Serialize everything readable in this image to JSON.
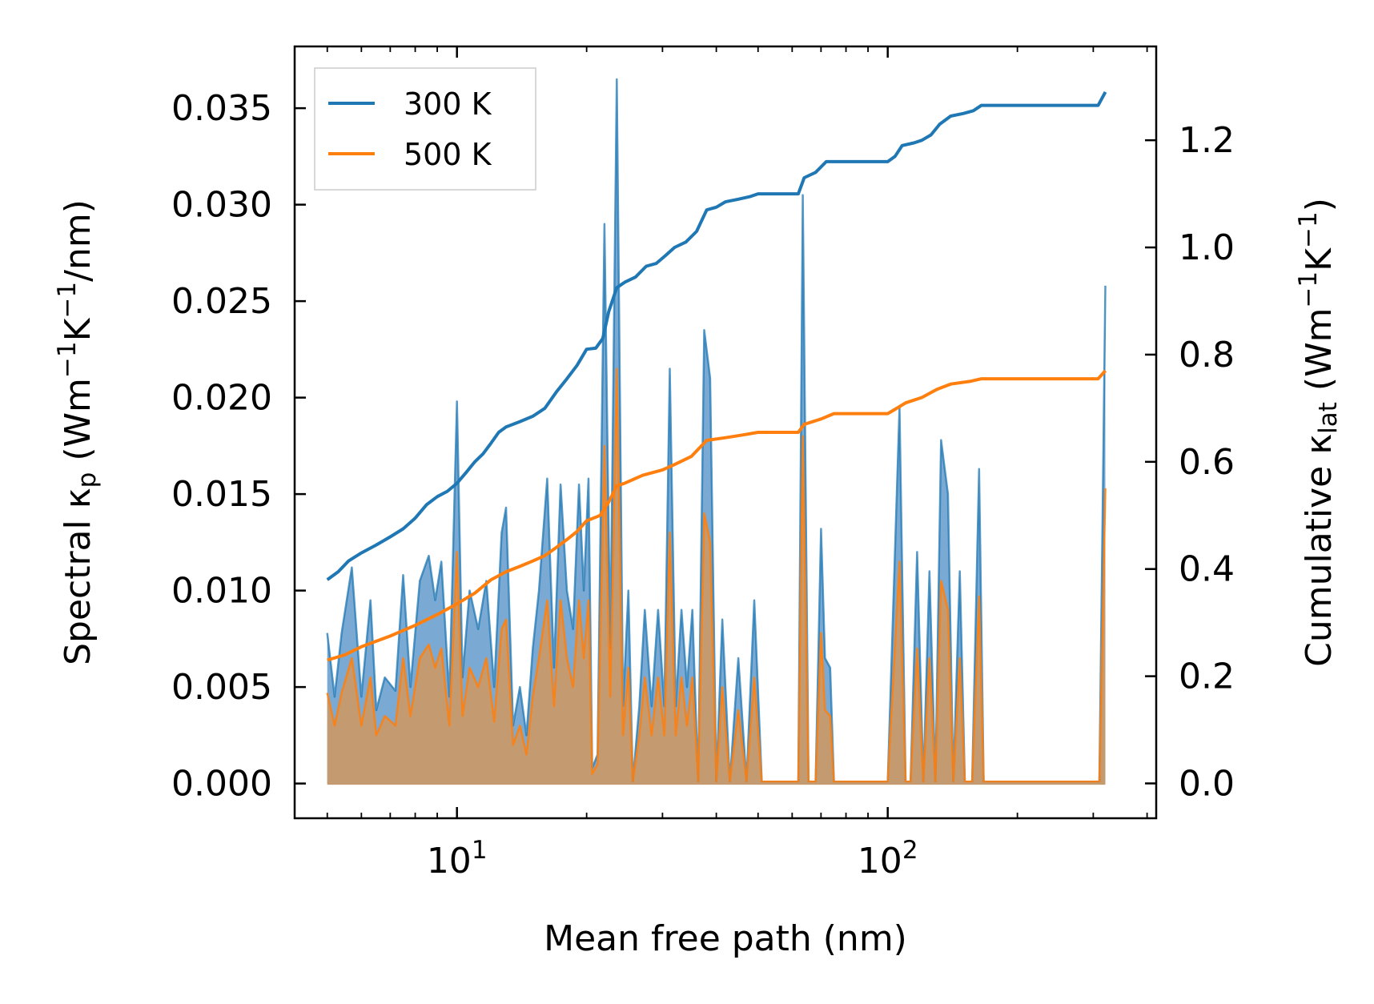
{
  "chart_data": {
    "type": "line",
    "x_scale": "log",
    "xlabel": "Mean free path (nm)",
    "ylabel_left": "Spectral κ",
    "ylabel_left_sub": "p",
    "ylabel_left_units": " (Wm",
    "ylabel_left_units2": "K",
    "ylabel_left_units3": "/nm)",
    "ylabel_right": "Cumulative κ",
    "ylabel_right_sub": "lat",
    "ylabel_right_units": " (Wm",
    "ylabel_right_units2": "K",
    "ylabel_right_units3": ")",
    "superscript": "−1",
    "xlim": [
      4.2,
      420
    ],
    "ylim_left": [
      -0.0018,
      0.0382
    ],
    "ylim_right": [
      -0.065,
      1.375
    ],
    "x_ticks_major": [
      10,
      100
    ],
    "x_tick_labels": [
      {
        "base": "10",
        "exp": "1"
      },
      {
        "base": "10",
        "exp": "2"
      }
    ],
    "y_ticks_left": [
      0.0,
      0.005,
      0.01,
      0.015,
      0.02,
      0.025,
      0.03,
      0.035
    ],
    "y_tick_labels_left": [
      "0.000",
      "0.005",
      "0.010",
      "0.015",
      "0.020",
      "0.025",
      "0.030",
      "0.035"
    ],
    "y_ticks_right": [
      0.0,
      0.2,
      0.4,
      0.6,
      0.8,
      1.0,
      1.2
    ],
    "y_tick_labels_right": [
      "0.0",
      "0.2",
      "0.4",
      "0.6",
      "0.8",
      "1.0",
      "1.2"
    ],
    "legend": [
      {
        "name": "300 K",
        "color": "#1f77b4"
      },
      {
        "name": "500 K",
        "color": "#ff7f0e"
      }
    ],
    "legend_position": "top-left",
    "colors": {
      "blue": "#1f77b4",
      "orange": "#ff7f0e",
      "blue_fill": "#7aaad3",
      "overlap_fill": "#c49a70"
    },
    "spectral_300K": [
      [
        5.0,
        0
      ],
      [
        5.0,
        0.0078
      ],
      [
        5.2,
        0.0045
      ],
      [
        5.4,
        0.0078
      ],
      [
        5.7,
        0.0112
      ],
      [
        6.0,
        0.0045
      ],
      [
        6.3,
        0.0095
      ],
      [
        6.5,
        0.0038
      ],
      [
        6.8,
        0.0055
      ],
      [
        7.2,
        0.0048
      ],
      [
        7.5,
        0.0108
      ],
      [
        7.8,
        0.005
      ],
      [
        8.2,
        0.0105
      ],
      [
        8.6,
        0.0118
      ],
      [
        8.9,
        0.0095
      ],
      [
        9.2,
        0.0115
      ],
      [
        9.6,
        0.0045
      ],
      [
        10.0,
        0.0198
      ],
      [
        10.3,
        0.0055
      ],
      [
        10.7,
        0.01
      ],
      [
        11.2,
        0.008
      ],
      [
        11.7,
        0.0105
      ],
      [
        12.2,
        0.005
      ],
      [
        12.7,
        0.013
      ],
      [
        13.0,
        0.0143
      ],
      [
        13.5,
        0.003
      ],
      [
        14.0,
        0.005
      ],
      [
        14.5,
        0.0025
      ],
      [
        15.0,
        0.007
      ],
      [
        15.5,
        0.01
      ],
      [
        16.2,
        0.0158
      ],
      [
        16.8,
        0.006
      ],
      [
        17.4,
        0.0155
      ],
      [
        18.0,
        0.01
      ],
      [
        18.6,
        0.008
      ],
      [
        19.2,
        0.0155
      ],
      [
        19.7,
        0.01
      ],
      [
        20.2,
        0.0158
      ],
      [
        20.6,
        0.0008
      ],
      [
        21.2,
        0.0015
      ],
      [
        22.0,
        0.029
      ],
      [
        22.7,
        0.007
      ],
      [
        23.5,
        0.0365
      ],
      [
        24.3,
        0.004
      ],
      [
        25.0,
        0.01
      ],
      [
        25.6,
        0.0001
      ],
      [
        26.5,
        0.004
      ],
      [
        27.3,
        0.009
      ],
      [
        28.3,
        0.004
      ],
      [
        29.3,
        0.009
      ],
      [
        30.3,
        0.004
      ],
      [
        31.2,
        0.0215
      ],
      [
        32.2,
        0.004
      ],
      [
        33.2,
        0.009
      ],
      [
        34.2,
        0.005
      ],
      [
        35.2,
        0.009
      ],
      [
        36.3,
        0.0001
      ],
      [
        37.5,
        0.0235
      ],
      [
        38.7,
        0.021
      ],
      [
        40.0,
        0.0001
      ],
      [
        41.3,
        0.0085
      ],
      [
        43.0,
        0.0001
      ],
      [
        45.0,
        0.0065
      ],
      [
        47.0,
        0.0001
      ],
      [
        49.0,
        0.0095
      ],
      [
        51.0,
        0.0001
      ],
      [
        60.0,
        0.0001
      ],
      [
        62.0,
        0.0001
      ],
      [
        63.5,
        0.0305
      ],
      [
        65.5,
        0.0001
      ],
      [
        68.0,
        0.0001
      ],
      [
        70.0,
        0.0132
      ],
      [
        71.5,
        0.0065
      ],
      [
        73.5,
        0.006
      ],
      [
        75.0,
        0.0001
      ],
      [
        100.0,
        0.0001
      ],
      [
        106.5,
        0.0195
      ],
      [
        110.0,
        0.0001
      ],
      [
        113.0,
        0.0001
      ],
      [
        117.0,
        0.012
      ],
      [
        121.0,
        0.0001
      ],
      [
        125.0,
        0.011
      ],
      [
        129.0,
        0.0001
      ],
      [
        133.0,
        0.0178
      ],
      [
        138.0,
        0.015
      ],
      [
        142.0,
        0.0001
      ],
      [
        147.0,
        0.011
      ],
      [
        151.0,
        0.0001
      ],
      [
        157.0,
        0.0001
      ],
      [
        163.0,
        0.0163
      ],
      [
        167.0,
        0.0001
      ],
      [
        310.0,
        0.0001
      ],
      [
        320.0,
        0.0258
      ],
      [
        320.0,
        0
      ]
    ],
    "spectral_500K": [
      [
        5.0,
        0
      ],
      [
        5.0,
        0.0047
      ],
      [
        5.2,
        0.003
      ],
      [
        5.4,
        0.0047
      ],
      [
        5.7,
        0.0065
      ],
      [
        6.0,
        0.003
      ],
      [
        6.3,
        0.0055
      ],
      [
        6.5,
        0.0025
      ],
      [
        6.8,
        0.0035
      ],
      [
        7.2,
        0.003
      ],
      [
        7.5,
        0.0065
      ],
      [
        7.8,
        0.0035
      ],
      [
        8.2,
        0.0065
      ],
      [
        8.6,
        0.0072
      ],
      [
        8.9,
        0.006
      ],
      [
        9.2,
        0.007
      ],
      [
        9.6,
        0.003
      ],
      [
        10.0,
        0.012
      ],
      [
        10.3,
        0.0035
      ],
      [
        10.7,
        0.006
      ],
      [
        11.2,
        0.005
      ],
      [
        11.7,
        0.0065
      ],
      [
        12.2,
        0.0032
      ],
      [
        12.7,
        0.008
      ],
      [
        13.0,
        0.0085
      ],
      [
        13.5,
        0.002
      ],
      [
        14.0,
        0.003
      ],
      [
        14.5,
        0.0015
      ],
      [
        15.0,
        0.0045
      ],
      [
        15.5,
        0.0065
      ],
      [
        16.2,
        0.0095
      ],
      [
        16.8,
        0.004
      ],
      [
        17.4,
        0.0095
      ],
      [
        18.0,
        0.0065
      ],
      [
        18.6,
        0.005
      ],
      [
        19.2,
        0.0095
      ],
      [
        19.7,
        0.0065
      ],
      [
        20.2,
        0.0095
      ],
      [
        20.6,
        0.0005
      ],
      [
        21.2,
        0.001
      ],
      [
        22.0,
        0.0175
      ],
      [
        22.7,
        0.0045
      ],
      [
        23.5,
        0.0215
      ],
      [
        24.3,
        0.0025
      ],
      [
        25.0,
        0.006
      ],
      [
        25.6,
        0.0001
      ],
      [
        26.5,
        0.0025
      ],
      [
        27.3,
        0.0055
      ],
      [
        28.3,
        0.0025
      ],
      [
        29.3,
        0.0055
      ],
      [
        30.3,
        0.0025
      ],
      [
        31.2,
        0.013
      ],
      [
        32.2,
        0.0025
      ],
      [
        33.2,
        0.0055
      ],
      [
        34.2,
        0.003
      ],
      [
        35.2,
        0.0055
      ],
      [
        36.3,
        0.0001
      ],
      [
        37.5,
        0.014
      ],
      [
        38.7,
        0.0125
      ],
      [
        40.0,
        0.0001
      ],
      [
        41.3,
        0.005
      ],
      [
        43.0,
        0.0001
      ],
      [
        45.0,
        0.0038
      ],
      [
        47.0,
        0.0001
      ],
      [
        49.0,
        0.0055
      ],
      [
        51.0,
        0.0001
      ],
      [
        60.0,
        0.0001
      ],
      [
        62.0,
        0.0001
      ],
      [
        63.5,
        0.018
      ],
      [
        65.5,
        0.0001
      ],
      [
        68.0,
        0.0001
      ],
      [
        70.0,
        0.0078
      ],
      [
        71.5,
        0.0038
      ],
      [
        73.5,
        0.0035
      ],
      [
        75.0,
        0.0001
      ],
      [
        100.0,
        0.0001
      ],
      [
        106.5,
        0.0115
      ],
      [
        110.0,
        0.0001
      ],
      [
        113.0,
        0.0001
      ],
      [
        117.0,
        0.007
      ],
      [
        121.0,
        0.0001
      ],
      [
        125.0,
        0.0065
      ],
      [
        129.0,
        0.0001
      ],
      [
        133.0,
        0.0105
      ],
      [
        138.0,
        0.009
      ],
      [
        142.0,
        0.0001
      ],
      [
        147.0,
        0.0065
      ],
      [
        151.0,
        0.0001
      ],
      [
        157.0,
        0.0001
      ],
      [
        163.0,
        0.0097
      ],
      [
        167.0,
        0.0001
      ],
      [
        310.0,
        0.0001
      ],
      [
        320.0,
        0.0153
      ],
      [
        320.0,
        0
      ]
    ],
    "cumulative_300K": [
      [
        5.0,
        0.38
      ],
      [
        5.3,
        0.395
      ],
      [
        5.6,
        0.415
      ],
      [
        6.0,
        0.43
      ],
      [
        6.5,
        0.445
      ],
      [
        7.0,
        0.46
      ],
      [
        7.5,
        0.475
      ],
      [
        8.0,
        0.495
      ],
      [
        8.5,
        0.52
      ],
      [
        9.0,
        0.535
      ],
      [
        9.5,
        0.545
      ],
      [
        10.0,
        0.56
      ],
      [
        10.5,
        0.58
      ],
      [
        11.0,
        0.6
      ],
      [
        11.5,
        0.615
      ],
      [
        12.0,
        0.635
      ],
      [
        12.5,
        0.655
      ],
      [
        13.0,
        0.665
      ],
      [
        14.0,
        0.675
      ],
      [
        15.0,
        0.685
      ],
      [
        16.0,
        0.7
      ],
      [
        17.0,
        0.73
      ],
      [
        18.0,
        0.755
      ],
      [
        19.0,
        0.78
      ],
      [
        20.0,
        0.81
      ],
      [
        21.0,
        0.812
      ],
      [
        21.8,
        0.83
      ],
      [
        22.5,
        0.88
      ],
      [
        23.5,
        0.925
      ],
      [
        24.5,
        0.935
      ],
      [
        26.0,
        0.945
      ],
      [
        27.5,
        0.965
      ],
      [
        29.0,
        0.97
      ],
      [
        30.5,
        0.985
      ],
      [
        32.0,
        1.0
      ],
      [
        34.0,
        1.01
      ],
      [
        36.0,
        1.03
      ],
      [
        38.0,
        1.07
      ],
      [
        40.0,
        1.075
      ],
      [
        42.0,
        1.085
      ],
      [
        45.0,
        1.09
      ],
      [
        48.0,
        1.095
      ],
      [
        50.0,
        1.1
      ],
      [
        55.0,
        1.1
      ],
      [
        62.0,
        1.1
      ],
      [
        64.0,
        1.13
      ],
      [
        68.0,
        1.14
      ],
      [
        72.0,
        1.16
      ],
      [
        80.0,
        1.16
      ],
      [
        95.0,
        1.16
      ],
      [
        100.0,
        1.16
      ],
      [
        104.0,
        1.17
      ],
      [
        108.0,
        1.19
      ],
      [
        115.0,
        1.195
      ],
      [
        120.0,
        1.2
      ],
      [
        126.0,
        1.21
      ],
      [
        132.0,
        1.23
      ],
      [
        140.0,
        1.245
      ],
      [
        150.0,
        1.25
      ],
      [
        158.0,
        1.255
      ],
      [
        165.0,
        1.265
      ],
      [
        200.0,
        1.265
      ],
      [
        250.0,
        1.265
      ],
      [
        308.0,
        1.265
      ],
      [
        320.0,
        1.29
      ]
    ],
    "cumulative_500K": [
      [
        5.0,
        0.23
      ],
      [
        5.5,
        0.24
      ],
      [
        6.0,
        0.255
      ],
      [
        7.0,
        0.275
      ],
      [
        8.0,
        0.295
      ],
      [
        9.0,
        0.315
      ],
      [
        10.0,
        0.335
      ],
      [
        11.0,
        0.355
      ],
      [
        12.0,
        0.38
      ],
      [
        13.0,
        0.395
      ],
      [
        14.0,
        0.405
      ],
      [
        15.0,
        0.415
      ],
      [
        16.0,
        0.425
      ],
      [
        17.0,
        0.44
      ],
      [
        18.0,
        0.455
      ],
      [
        19.0,
        0.47
      ],
      [
        20.0,
        0.49
      ],
      [
        21.5,
        0.5
      ],
      [
        22.5,
        0.525
      ],
      [
        23.5,
        0.555
      ],
      [
        24.5,
        0.56
      ],
      [
        27.0,
        0.575
      ],
      [
        30.0,
        0.585
      ],
      [
        32.0,
        0.595
      ],
      [
        35.0,
        0.61
      ],
      [
        38.0,
        0.64
      ],
      [
        42.0,
        0.645
      ],
      [
        46.0,
        0.65
      ],
      [
        50.0,
        0.655
      ],
      [
        55.0,
        0.655
      ],
      [
        62.0,
        0.655
      ],
      [
        64.0,
        0.67
      ],
      [
        70.0,
        0.68
      ],
      [
        75.0,
        0.69
      ],
      [
        90.0,
        0.69
      ],
      [
        100.0,
        0.69
      ],
      [
        105.0,
        0.7
      ],
      [
        110.0,
        0.71
      ],
      [
        120.0,
        0.72
      ],
      [
        130.0,
        0.735
      ],
      [
        140.0,
        0.745
      ],
      [
        155.0,
        0.75
      ],
      [
        165.0,
        0.755
      ],
      [
        200.0,
        0.755
      ],
      [
        250.0,
        0.755
      ],
      [
        308.0,
        0.755
      ],
      [
        320.0,
        0.77
      ]
    ]
  }
}
